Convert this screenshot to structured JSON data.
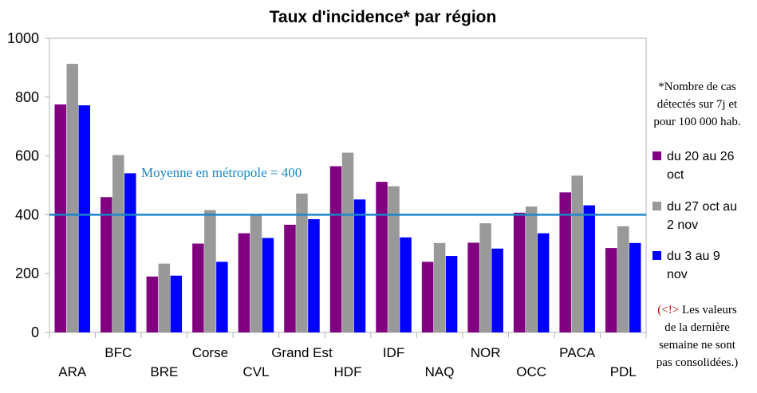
{
  "chart_data": {
    "type": "bar",
    "title": "Taux d'incidence* par région",
    "categories": [
      "ARA",
      "BFC",
      "BRE",
      "Corse",
      "CVL",
      "Grand Est",
      "HDF",
      "IDF",
      "NAQ",
      "NOR",
      "OCC",
      "PACA",
      "PDL"
    ],
    "series": [
      {
        "name": "du 20 au 26 oct",
        "name_lines": [
          "du 20 au 26",
          "oct"
        ],
        "color": "#800080",
        "values": [
          775,
          460,
          190,
          302,
          337,
          366,
          565,
          512,
          240,
          305,
          407,
          476,
          287
        ]
      },
      {
        "name": "du 27 oct au 2 nov",
        "name_lines": [
          "du 27 oct au",
          "2 nov"
        ],
        "color": "#999999",
        "values": [
          913,
          603,
          234,
          416,
          400,
          472,
          611,
          497,
          304,
          371,
          428,
          533,
          361
        ]
      },
      {
        "name": "du 3 au 9 nov",
        "name_lines": [
          "du 3 au 9",
          "nov"
        ],
        "color": "#0000ff",
        "values": [
          772,
          541,
          193,
          240,
          321,
          385,
          452,
          323,
          260,
          285,
          337,
          432,
          304
        ]
      }
    ],
    "ylim": [
      0,
      1000
    ],
    "yticks": [
      0,
      200,
      400,
      600,
      800,
      1000
    ],
    "grid": false,
    "legend": "right",
    "reference_line": {
      "value": 400,
      "label": "Moyenne en métropole = 400",
      "color": "#1a86c8"
    },
    "note_lines": [
      "*Nombre de cas",
      "détectés sur 7j et",
      "pour 100 000 hab."
    ],
    "warning_prefix": "(<!>",
    "warning_lines": [
      "Les valeurs",
      "de la dernière",
      "semaine ne sont",
      "pas consolidées.)"
    ]
  }
}
